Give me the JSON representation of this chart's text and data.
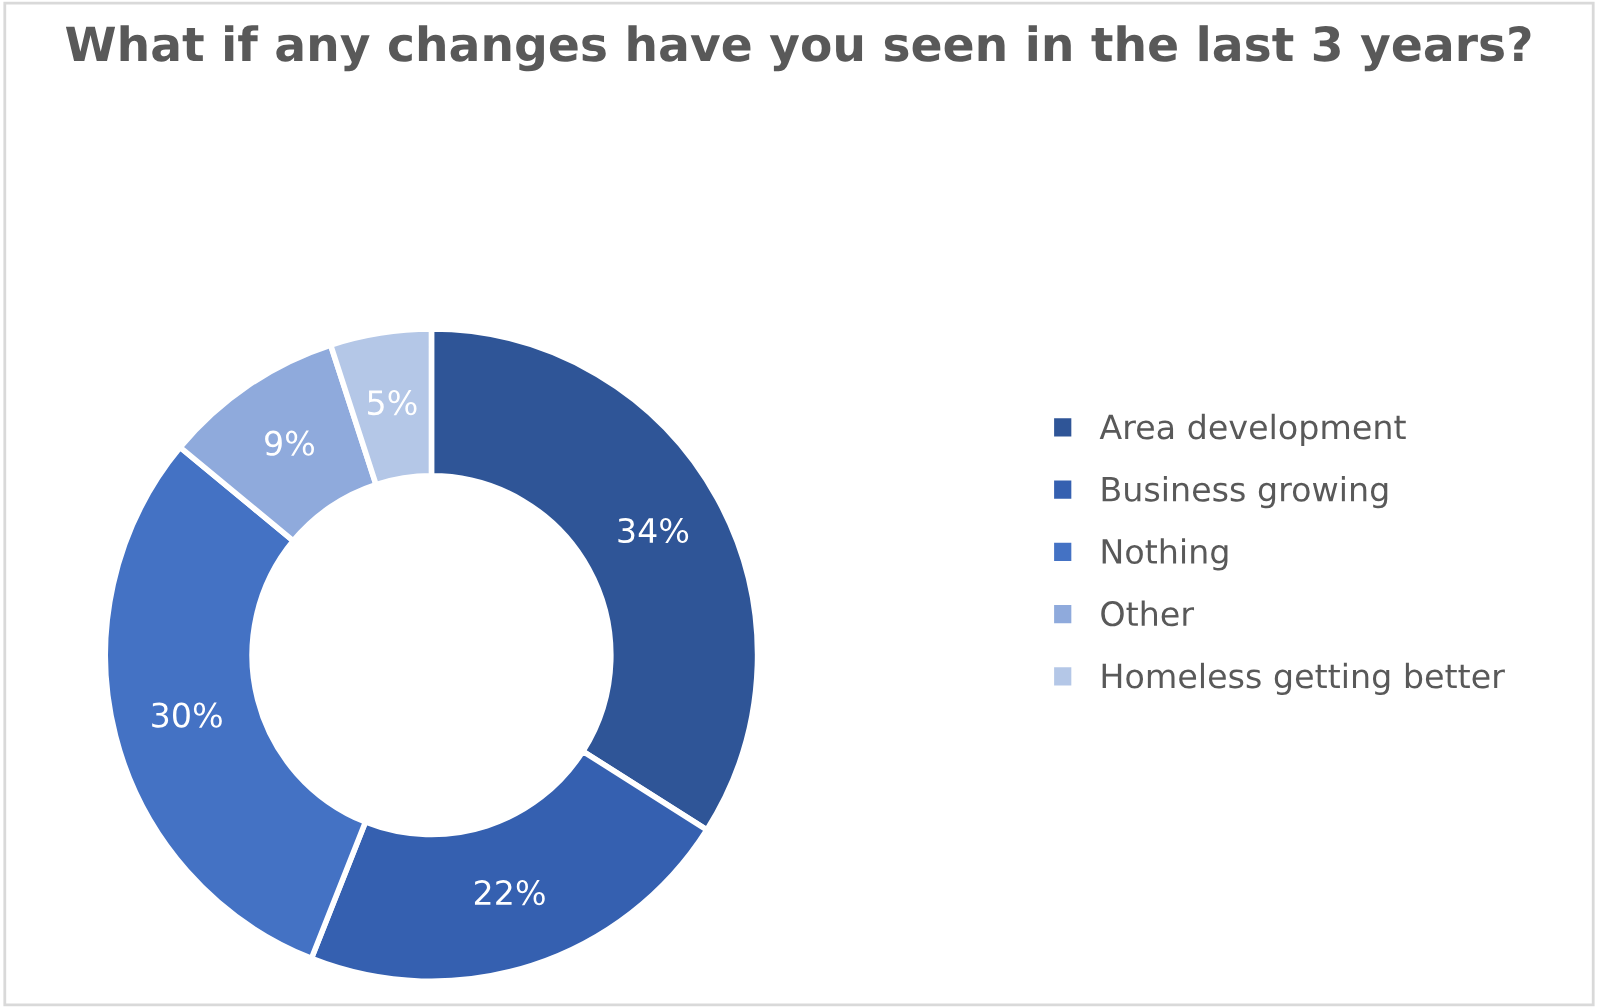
{
  "chart_data": {
    "type": "donut",
    "title": "What if any changes have you seen in the last 3 years?",
    "categories": [
      "Area development",
      "Business growing",
      "Nothing",
      "Other",
      "Homeless getting better"
    ],
    "values": [
      34,
      22,
      30,
      9,
      5
    ],
    "colors": [
      "#2f5597",
      "#3560b0",
      "#4472c4",
      "#8faadc",
      "#b4c7e7"
    ],
    "value_labels": [
      "34%",
      "22%",
      "30%",
      "9%",
      "5%"
    ],
    "legend": "right"
  }
}
